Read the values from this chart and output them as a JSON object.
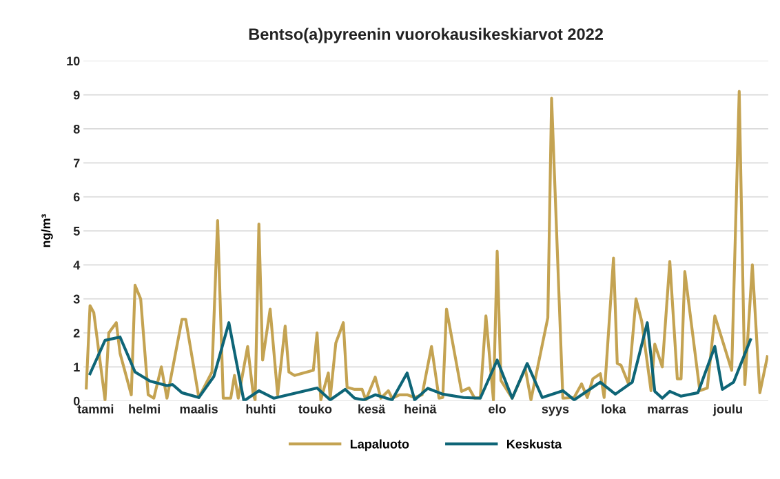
{
  "chart_data": {
    "type": "line",
    "title": "Bentso(a)pyreenin vuorokausikeskiarvot 2022",
    "ylabel": "ng/m³",
    "ylim": [
      0,
      10
    ],
    "yticks": [
      0,
      1,
      2,
      3,
      4,
      5,
      6,
      7,
      8,
      9,
      10
    ],
    "grid": "y",
    "legend": "bottom",
    "marker": "none",
    "line_style": "solid",
    "categories": [
      null,
      null,
      null,
      null,
      null,
      null,
      "tammi",
      null,
      null,
      null,
      null,
      null,
      null,
      null,
      null,
      null,
      null,
      null,
      null,
      null,
      null,
      null,
      null,
      null,
      null,
      null,
      null,
      null,
      null,
      null,
      null,
      null,
      "helmi",
      null,
      null,
      null,
      null,
      null,
      null,
      null,
      null,
      null,
      null,
      null,
      null,
      null,
      null,
      null,
      null,
      null,
      null,
      null,
      null,
      null,
      null,
      null,
      null,
      null,
      null,
      null,
      null,
      "maalis",
      null,
      null,
      null,
      null,
      null,
      null,
      null,
      null,
      null,
      null,
      null,
      null,
      null,
      null,
      null,
      null,
      null,
      null,
      null,
      null,
      null,
      null,
      null,
      null,
      null,
      null,
      null,
      null,
      null,
      null,
      null,
      null,
      "huhti",
      null,
      null,
      null,
      null,
      null,
      null,
      null,
      null,
      null,
      null,
      null,
      null,
      null,
      null,
      null,
      null,
      null,
      null,
      null,
      null,
      null,
      null,
      null,
      null,
      null,
      null,
      null,
      null,
      "touko",
      null,
      null,
      null,
      null,
      null,
      null,
      null,
      null,
      null,
      null,
      null,
      null,
      null,
      null,
      null,
      null,
      null,
      null,
      null,
      null,
      null,
      null,
      null,
      null,
      null,
      null,
      null,
      null,
      null,
      "kesä",
      null,
      null,
      null,
      null,
      null,
      null,
      null,
      null,
      null,
      null,
      null,
      null,
      null,
      null,
      null,
      null,
      null,
      null,
      null,
      null,
      null,
      null,
      null,
      null,
      null,
      "heinä",
      null,
      null,
      null,
      null,
      null,
      null,
      null,
      null,
      null,
      null,
      null,
      null,
      null,
      null,
      null,
      null,
      null,
      null,
      null,
      null,
      null,
      null,
      null,
      null,
      null,
      null,
      null,
      null,
      null,
      null,
      null,
      null,
      null,
      null,
      null,
      null,
      null,
      null,
      null,
      null,
      "elo",
      null,
      null,
      null,
      null,
      null,
      null,
      null,
      null,
      null,
      null,
      null,
      null,
      null,
      null,
      null,
      null,
      null,
      null,
      null,
      null,
      null,
      null,
      null,
      null,
      null,
      null,
      null,
      null,
      null,
      null,
      "syys",
      null,
      null,
      null,
      null,
      null,
      null,
      null,
      null,
      null,
      null,
      null,
      null,
      null,
      null,
      null,
      null,
      null,
      null,
      null,
      null,
      null,
      null,
      null,
      null,
      null,
      null,
      null,
      null,
      null,
      null,
      "loka",
      null,
      null,
      null,
      null,
      null,
      null,
      null,
      null,
      null,
      null,
      null,
      null,
      null,
      null,
      null,
      null,
      null,
      null,
      null,
      null,
      null,
      null,
      null,
      null,
      null,
      null,
      null,
      null,
      "marras",
      null,
      null,
      null,
      null,
      null,
      null,
      null,
      null,
      null,
      null,
      null,
      null,
      null,
      null,
      null,
      null,
      null,
      null,
      null,
      null,
      null,
      null,
      null,
      null,
      null,
      null,
      null,
      null,
      null,
      null,
      null,
      "joulu",
      null,
      null,
      null,
      null,
      null,
      null,
      null,
      null,
      null,
      null,
      null,
      null,
      null,
      null,
      null,
      null,
      null,
      null,
      null,
      null,
      null
    ],
    "series": [
      {
        "name": "Lapaluoto",
        "color": "#c4a352",
        "values": [
          null,
          0.38,
          null,
          2.8,
          null,
          2.6,
          null,
          null,
          null,
          null,
          null,
          0.03,
          null,
          2.0,
          null,
          null,
          null,
          2.3,
          null,
          1.4,
          null,
          null,
          null,
          null,
          null,
          0.18,
          null,
          3.4,
          null,
          null,
          3.0,
          null,
          null,
          null,
          0.18,
          null,
          null,
          0.08,
          null,
          null,
          null,
          1.0,
          null,
          null,
          0.08,
          null,
          null,
          null,
          null,
          null,
          null,
          null,
          2.4,
          null,
          2.4,
          null,
          null,
          null,
          null,
          null,
          null,
          0.1,
          null,
          null,
          null,
          null,
          null,
          null,
          0.85,
          null,
          null,
          5.3,
          null,
          null,
          0.08,
          null,
          null,
          null,
          0.08,
          null,
          0.75,
          null,
          0.08,
          null,
          null,
          null,
          null,
          1.6,
          null,
          null,
          0.18,
          0.03,
          null,
          5.2,
          null,
          1.2,
          null,
          null,
          null,
          2.7,
          null,
          null,
          null,
          0.18,
          null,
          null,
          null,
          2.2,
          null,
          0.85,
          null,
          null,
          0.75,
          null,
          null,
          null,
          null,
          null,
          null,
          null,
          null,
          null,
          0.9,
          null,
          2.0,
          null,
          0.03,
          null,
          null,
          null,
          0.82,
          0.08,
          null,
          null,
          1.7,
          null,
          null,
          null,
          2.3,
          null,
          0.4,
          null,
          null,
          null,
          0.34,
          null,
          null,
          null,
          0.34,
          null,
          0.03,
          null,
          null,
          null,
          null,
          0.7,
          null,
          null,
          0.08,
          null,
          null,
          null,
          0.3,
          null,
          0.08,
          null,
          null,
          null,
          0.18,
          null,
          null,
          null,
          0.18,
          null,
          null,
          null,
          0.1,
          null,
          null,
          null,
          0.18,
          null,
          null,
          null,
          null,
          1.6,
          null,
          null,
          null,
          0.08,
          null,
          0.1,
          null,
          2.7,
          null,
          null,
          null,
          null,
          null,
          null,
          null,
          0.28,
          null,
          null,
          null,
          0.38,
          null,
          null,
          0.08,
          null,
          null,
          0.1,
          null,
          null,
          2.5,
          null,
          null,
          null,
          0.03,
          null,
          4.4,
          null,
          0.6,
          null,
          null,
          null,
          null,
          null,
          0.08,
          null,
          null,
          null,
          null,
          null,
          null,
          0.95,
          null,
          null,
          0.03,
          null,
          null,
          null,
          null,
          null,
          null,
          null,
          null,
          2.45,
          null,
          8.9,
          null,
          null,
          null,
          null,
          null,
          0.08,
          null,
          null,
          null,
          null,
          null,
          0.1,
          null,
          null,
          null,
          0.5,
          null,
          null,
          0.1,
          null,
          null,
          0.65,
          null,
          null,
          null,
          0.8,
          null,
          0.1,
          null,
          null,
          null,
          null,
          4.2,
          null,
          1.1,
          null,
          1.05,
          null,
          null,
          null,
          0.5,
          null,
          null,
          null,
          3.0,
          null,
          null,
          2.35,
          null,
          null,
          null,
          null,
          0.3,
          null,
          1.67,
          null,
          null,
          null,
          1.0,
          null,
          null,
          null,
          4.1,
          null,
          null,
          null,
          0.65,
          null,
          0.65,
          null,
          3.8,
          null,
          null,
          null,
          null,
          null,
          null,
          null,
          0.3,
          null,
          null,
          null,
          0.38,
          null,
          null,
          null,
          2.5,
          null,
          null,
          null,
          null,
          null,
          null,
          null,
          null,
          0.9,
          null,
          null,
          null,
          9.1,
          null,
          null,
          0.48,
          null,
          null,
          null,
          4.0,
          null,
          null,
          null,
          0.24,
          null,
          null,
          null,
          1.3
        ]
      },
      {
        "name": "Keskusta",
        "color": "#0e6577",
        "values": [
          null,
          null,
          null,
          0.8,
          null,
          null,
          null,
          null,
          null,
          null,
          null,
          1.78,
          null,
          null,
          null,
          null,
          null,
          null,
          null,
          1.88,
          null,
          null,
          null,
          null,
          null,
          null,
          null,
          0.85,
          null,
          null,
          null,
          null,
          null,
          null,
          null,
          0.58,
          null,
          null,
          null,
          null,
          null,
          null,
          null,
          null,
          0.45,
          null,
          null,
          0.48,
          null,
          null,
          null,
          null,
          0.24,
          null,
          null,
          null,
          null,
          null,
          null,
          null,
          null,
          0.1,
          null,
          null,
          null,
          null,
          null,
          null,
          null,
          0.72,
          null,
          null,
          null,
          null,
          null,
          null,
          null,
          2.3,
          null,
          null,
          null,
          null,
          null,
          null,
          null,
          0.0,
          null,
          null,
          null,
          null,
          null,
          null,
          null,
          0.3,
          null,
          null,
          null,
          null,
          null,
          null,
          null,
          0.08,
          null,
          null,
          null,
          null,
          null,
          null,
          null,
          null,
          null,
          null,
          null,
          null,
          null,
          null,
          null,
          null,
          null,
          null,
          null,
          null,
          null,
          null,
          0.38,
          null,
          null,
          null,
          null,
          null,
          null,
          0.03,
          null,
          null,
          null,
          null,
          null,
          null,
          null,
          0.34,
          null,
          null,
          null,
          null,
          0.08,
          null,
          null,
          null,
          null,
          0.03,
          null,
          null,
          null,
          null,
          null,
          0.18,
          null,
          null,
          null,
          null,
          null,
          null,
          null,
          null,
          0.03,
          null,
          null,
          null,
          null,
          null,
          null,
          null,
          0.82,
          null,
          null,
          null,
          0.03,
          null,
          null,
          null,
          null,
          null,
          null,
          0.37,
          null,
          null,
          null,
          null,
          null,
          null,
          null,
          0.2,
          null,
          null,
          null,
          null,
          null,
          null,
          null,
          null,
          null,
          null,
          0.1,
          null,
          null,
          null,
          null,
          null,
          null,
          null,
          null,
          0.08,
          null,
          null,
          null,
          null,
          null,
          null,
          null,
          null,
          1.2,
          null,
          null,
          null,
          null,
          null,
          null,
          null,
          0.08,
          null,
          null,
          null,
          null,
          null,
          null,
          null,
          1.1,
          null,
          null,
          null,
          null,
          null,
          null,
          null,
          0.1,
          null,
          null,
          null,
          null,
          null,
          null,
          null,
          null,
          null,
          null,
          0.3,
          null,
          null,
          null,
          null,
          null,
          0.03,
          null,
          null,
          null,
          null,
          null,
          null,
          null,
          null,
          null,
          null,
          null,
          null,
          null,
          0.55,
          null,
          null,
          null,
          null,
          null,
          null,
          null,
          0.2,
          null,
          null,
          null,
          null,
          null,
          null,
          null,
          null,
          0.55,
          null,
          null,
          null,
          null,
          null,
          null,
          null,
          2.3,
          null,
          null,
          null,
          0.28,
          null,
          null,
          null,
          0.08,
          null,
          null,
          null,
          0.28,
          null,
          null,
          null,
          null,
          null,
          0.14,
          null,
          null,
          null,
          null,
          null,
          null,
          null,
          null,
          0.24,
          null,
          null,
          null,
          null,
          null,
          null,
          null,
          null,
          1.6,
          null,
          null,
          null,
          0.34,
          null,
          null,
          null,
          null,
          null,
          0.55,
          null,
          null,
          null,
          null,
          null,
          null,
          null,
          null,
          1.8,
          null,
          null,
          null,
          null,
          null,
          null,
          null,
          null,
          null
        ]
      }
    ]
  }
}
